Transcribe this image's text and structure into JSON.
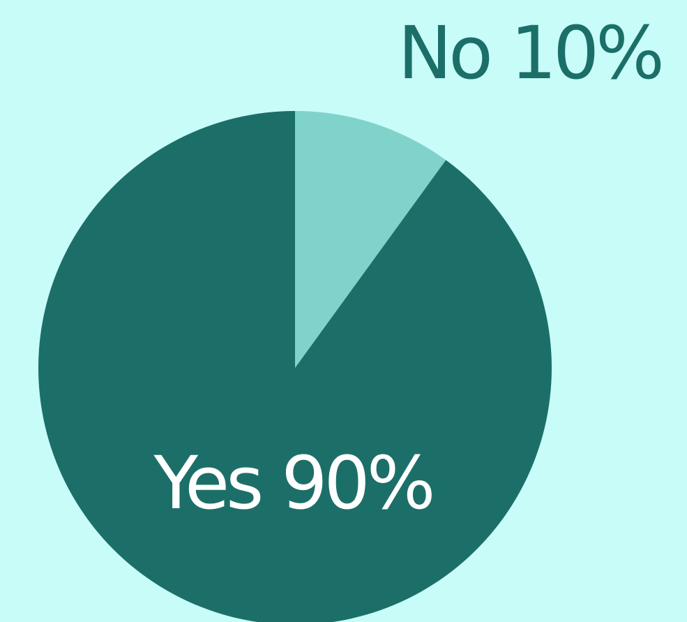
{
  "chart_data": {
    "type": "pie",
    "categories": [
      "No",
      "Yes"
    ],
    "values": [
      10,
      90
    ],
    "value_labels": [
      "10%",
      "90%"
    ],
    "colors": [
      "#7fd3cb",
      "#1c6f69"
    ]
  }
}
